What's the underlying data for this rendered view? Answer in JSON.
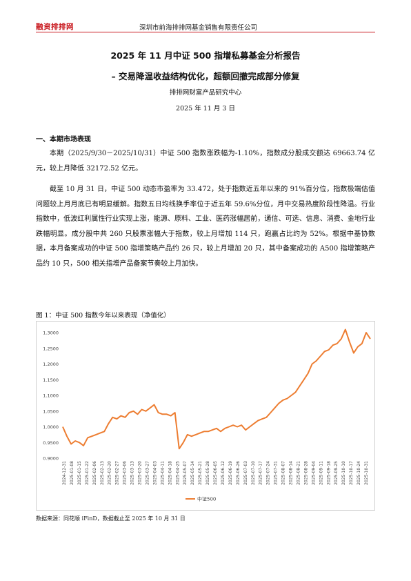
{
  "header": {
    "logo_text": "融资排排网",
    "company": "深圳市前海排排网基金销售有限责任公司"
  },
  "report": {
    "title_line1": "2025 年 11 月中证 500 指增私募基金分析报告",
    "title_line2": "– 交易降温收益结构优化，超额回撤完成部分修复",
    "author": "排排网财富产品研究中心",
    "date": "2025 年 11 月 3 日"
  },
  "section1": {
    "heading": "一、本期市场表现",
    "para1": "本期（2025/9/30－2025/10/31）中证 500 指数涨跌幅为-1.10%，指数成分股成交额达 69663.74 亿元，较上月降低 32172.52 亿元。",
    "para2": "截至 10 月 31 日，中证 500 动态市盈率为 33.472，处于指数近五年以来的 91%百分位，指数极端估值问题较上月月底已有明显缓解。指数五日均线换手率位于近五年 59.6%分位，月中交易热度阶段性降温。行业指数中，低波红利属性行业实现上涨，能源、原料、工业、医药涨幅居前，通信、可选、信息、消费、金地行业跌幅明显。成分股中共 260 只股票涨幅大于指数，较上月增加 114 只，跑赢占比约为 52%。根据中基协数据，本月备案成功的中证 500 指增策略产品约 26 只，较上月增加 20 只，其中备案成功的 A500 指增策略产品约 10 只，500 相关指增产品备案节奏较上月加快。"
  },
  "figure": {
    "caption": "图 1：中证 500 指数今年以来表现（净值化）",
    "source": "数据来源：同花顺 iFinD，数据截止至 2025 年 10 月 31 日"
  },
  "chart_data": {
    "type": "line",
    "title": "",
    "xlabel": "",
    "ylabel": "",
    "ylim": [
      0.9,
      1.3
    ],
    "yticks": [
      "0.9000",
      "0.9500",
      "1.0000",
      "1.0500",
      "1.1000",
      "1.1500",
      "1.2000",
      "1.2500",
      "1.3000"
    ],
    "xticks": [
      "2024-12-31",
      "2025-01-08",
      "2025-01-15",
      "2025-01-22",
      "2025-02-06",
      "2025-02-13",
      "2025-02-20",
      "2025-02-27",
      "2025-03-06",
      "2025-03-13",
      "2025-03-20",
      "2025-03-27",
      "2025-04-03",
      "2025-04-11",
      "2025-04-18",
      "2025-04-25",
      "2025-05-07",
      "2025-05-14",
      "2025-05-21",
      "2025-05-28",
      "2025-06-05",
      "2025-06-12",
      "2025-06-19",
      "2025-06-26",
      "2025-07-03",
      "2025-07-10",
      "2025-07-17",
      "2025-07-24",
      "2025-07-31",
      "2025-08-07",
      "2025-08-14",
      "2025-08-21",
      "2025-08-28",
      "2025-09-04",
      "2025-09-11",
      "2025-09-18",
      "2025-09-25",
      "2025-10-10",
      "2025-10-17",
      "2025-10-24",
      "2025-10-31"
    ],
    "legend_position": "bottom",
    "color": "#ed7d31",
    "series": [
      {
        "name": "中证500",
        "values": [
          1.0,
          0.97,
          0.945,
          0.955,
          0.95,
          0.94,
          0.965,
          0.97,
          0.975,
          0.98,
          0.985,
          1.01,
          1.03,
          1.025,
          1.035,
          1.03,
          1.045,
          1.05,
          1.04,
          1.055,
          1.05,
          1.06,
          1.07,
          1.045,
          1.04,
          1.04,
          1.035,
          1.045,
          0.93,
          0.95,
          0.975,
          0.97,
          0.975,
          0.98,
          0.985,
          0.985,
          0.99,
          0.995,
          0.985,
          0.995,
          1.0,
          1.005,
          1.0,
          1.005,
          0.99,
          1.0,
          1.01,
          1.02,
          1.025,
          1.03,
          1.045,
          1.06,
          1.075,
          1.085,
          1.09,
          1.1,
          1.11,
          1.13,
          1.15,
          1.17,
          1.2,
          1.21,
          1.225,
          1.24,
          1.245,
          1.26,
          1.265,
          1.28,
          1.31,
          1.27,
          1.235,
          1.255,
          1.265,
          1.3,
          1.28
        ]
      }
    ]
  }
}
